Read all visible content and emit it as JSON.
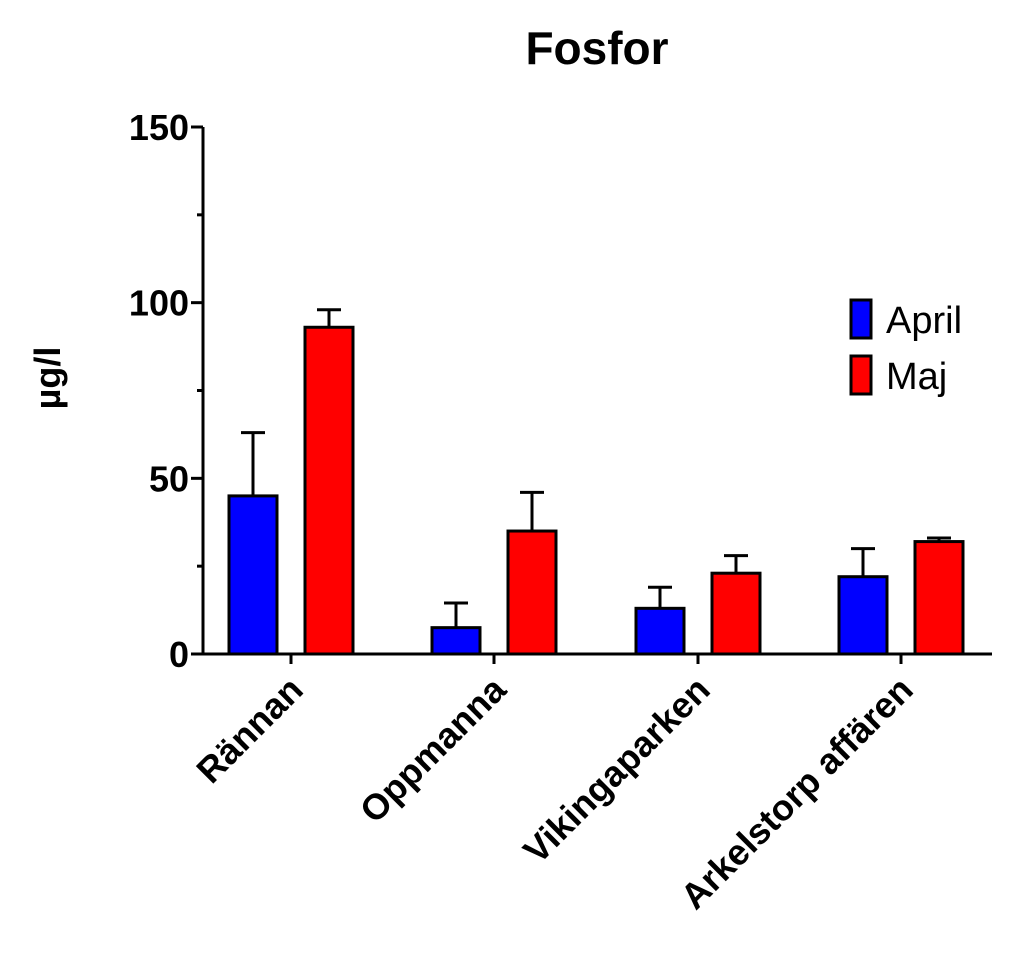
{
  "chart_data": {
    "type": "bar",
    "title": "Fosfor",
    "xlabel": "",
    "ylabel": "µg/l",
    "ylim": [
      0,
      150
    ],
    "yticks": [
      0,
      50,
      100,
      150
    ],
    "minor_yticks": [
      25,
      75,
      125
    ],
    "categories": [
      "Rännan",
      "Oppmanna",
      "Vikingaparken",
      "Arkelstorp affären"
    ],
    "series": [
      {
        "name": "April",
        "color": "#0000ff",
        "values": [
          45,
          7.5,
          13,
          22
        ],
        "errors": [
          18,
          7,
          6,
          8
        ]
      },
      {
        "name": "Maj",
        "color": "#ff0000",
        "values": [
          93,
          35,
          23,
          32
        ],
        "errors": [
          5,
          11,
          5,
          1
        ]
      }
    ],
    "grid": false,
    "legend_position": "right"
  }
}
